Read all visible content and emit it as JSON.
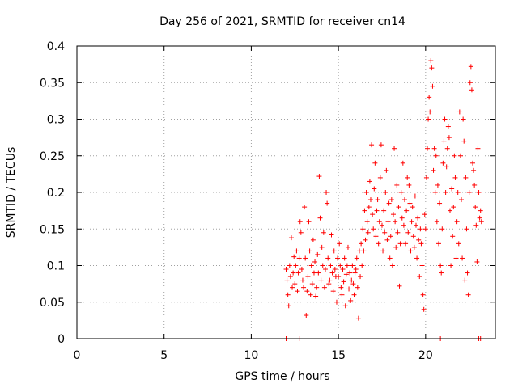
{
  "chart_data": {
    "type": "scatter",
    "title": "Day 256 of 2021, SRMTID for receiver cn14",
    "xlabel": "GPS time / hours",
    "ylabel": "SRMTID / TECUs",
    "xlim": [
      0,
      24
    ],
    "ylim": [
      0,
      0.4
    ],
    "x_ticks": [
      0,
      5,
      10,
      15,
      20
    ],
    "x_tick_labels": [
      "0",
      "5",
      "10",
      "15",
      "20"
    ],
    "y_ticks": [
      0,
      0.05,
      0.1,
      0.15,
      0.2,
      0.25,
      0.3,
      0.35,
      0.4
    ],
    "y_tick_labels": [
      "0",
      "0.05",
      "0.1",
      "0.15",
      "0.2",
      "0.25",
      "0.3",
      "0.35",
      "0.4"
    ],
    "grid": true,
    "marker": "+",
    "color": "#ff0000",
    "series": [
      {
        "name": "SRMTID",
        "points": [
          [
            12.0,
            0.0
          ],
          [
            12.75,
            0.0
          ],
          [
            20.85,
            0.0
          ],
          [
            23.05,
            0.0
          ],
          [
            23.15,
            0.0
          ],
          [
            12.0,
            0.095
          ],
          [
            12.05,
            0.08
          ],
          [
            12.1,
            0.06
          ],
          [
            12.15,
            0.045
          ],
          [
            12.2,
            0.1
          ],
          [
            12.25,
            0.085
          ],
          [
            12.3,
            0.138
          ],
          [
            12.35,
            0.07
          ],
          [
            12.4,
            0.09
          ],
          [
            12.45,
            0.112
          ],
          [
            12.5,
            0.075
          ],
          [
            12.55,
            0.1
          ],
          [
            12.6,
            0.12
          ],
          [
            12.65,
            0.065
          ],
          [
            12.7,
            0.09
          ],
          [
            12.75,
            0.11
          ],
          [
            12.8,
            0.16
          ],
          [
            12.85,
            0.145
          ],
          [
            12.9,
            0.095
          ],
          [
            12.95,
            0.08
          ],
          [
            13.0,
            0.07
          ],
          [
            13.05,
            0.18
          ],
          [
            13.1,
            0.11
          ],
          [
            13.15,
            0.032
          ],
          [
            13.2,
            0.065
          ],
          [
            13.25,
            0.085
          ],
          [
            13.3,
            0.16
          ],
          [
            13.35,
            0.12
          ],
          [
            13.4,
            0.06
          ],
          [
            13.45,
            0.1
          ],
          [
            13.5,
            0.075
          ],
          [
            13.55,
            0.135
          ],
          [
            13.6,
            0.09
          ],
          [
            13.65,
            0.105
          ],
          [
            13.7,
            0.058
          ],
          [
            13.75,
            0.07
          ],
          [
            13.8,
            0.115
          ],
          [
            13.85,
            0.09
          ],
          [
            13.9,
            0.222
          ],
          [
            13.95,
            0.165
          ],
          [
            14.0,
            0.08
          ],
          [
            14.05,
            0.125
          ],
          [
            14.1,
            0.1
          ],
          [
            14.15,
            0.145
          ],
          [
            14.2,
            0.07
          ],
          [
            14.25,
            0.095
          ],
          [
            14.3,
            0.2
          ],
          [
            14.35,
            0.185
          ],
          [
            14.4,
            0.11
          ],
          [
            14.45,
            0.075
          ],
          [
            14.5,
            0.08
          ],
          [
            14.55,
            0.1
          ],
          [
            14.6,
            0.142
          ],
          [
            14.65,
            0.09
          ],
          [
            14.7,
            0.065
          ],
          [
            14.75,
            0.12
          ],
          [
            14.8,
            0.095
          ],
          [
            14.85,
            0.085
          ],
          [
            14.9,
            0.05
          ],
          [
            14.95,
            0.11
          ],
          [
            15.0,
            0.085
          ],
          [
            15.05,
            0.13
          ],
          [
            15.1,
            0.1
          ],
          [
            15.15,
            0.07
          ],
          [
            15.2,
            0.06
          ],
          [
            15.25,
            0.095
          ],
          [
            15.3,
            0.078
          ],
          [
            15.35,
            0.11
          ],
          [
            15.4,
            0.045
          ],
          [
            15.45,
            0.088
          ],
          [
            15.5,
            0.1
          ],
          [
            15.55,
            0.125
          ],
          [
            15.6,
            0.068
          ],
          [
            15.65,
            0.09
          ],
          [
            15.7,
            0.052
          ],
          [
            15.75,
            0.08
          ],
          [
            15.8,
            0.1
          ],
          [
            15.85,
            0.075
          ],
          [
            15.9,
            0.06
          ],
          [
            15.95,
            0.09
          ],
          [
            16.0,
            0.095
          ],
          [
            16.05,
            0.11
          ],
          [
            16.1,
            0.07
          ],
          [
            16.15,
            0.028
          ],
          [
            16.2,
            0.12
          ],
          [
            16.25,
            0.085
          ],
          [
            16.3,
            0.13
          ],
          [
            16.35,
            0.1
          ],
          [
            16.4,
            0.15
          ],
          [
            16.45,
            0.12
          ],
          [
            16.5,
            0.175
          ],
          [
            16.55,
            0.135
          ],
          [
            16.6,
            0.2
          ],
          [
            16.65,
            0.16
          ],
          [
            16.7,
            0.145
          ],
          [
            16.75,
            0.18
          ],
          [
            16.8,
            0.215
          ],
          [
            16.85,
            0.19
          ],
          [
            16.9,
            0.265
          ],
          [
            16.95,
            0.17
          ],
          [
            17.0,
            0.15
          ],
          [
            17.05,
            0.205
          ],
          [
            17.1,
            0.24
          ],
          [
            17.15,
            0.14
          ],
          [
            17.2,
            0.175
          ],
          [
            17.25,
            0.19
          ],
          [
            17.3,
            0.13
          ],
          [
            17.35,
            0.16
          ],
          [
            17.4,
            0.22
          ],
          [
            17.45,
            0.265
          ],
          [
            17.5,
            0.155
          ],
          [
            17.55,
            0.12
          ],
          [
            17.6,
            0.175
          ],
          [
            17.65,
            0.145
          ],
          [
            17.7,
            0.2
          ],
          [
            17.75,
            0.23
          ],
          [
            17.8,
            0.135
          ],
          [
            17.85,
            0.16
          ],
          [
            17.9,
            0.185
          ],
          [
            17.95,
            0.11
          ],
          [
            18.0,
            0.14
          ],
          [
            18.05,
            0.19
          ],
          [
            18.1,
            0.1
          ],
          [
            18.15,
            0.17
          ],
          [
            18.2,
            0.26
          ],
          [
            18.25,
            0.16
          ],
          [
            18.3,
            0.125
          ],
          [
            18.35,
            0.21
          ],
          [
            18.4,
            0.145
          ],
          [
            18.45,
            0.18
          ],
          [
            18.5,
            0.072
          ],
          [
            18.55,
            0.13
          ],
          [
            18.6,
            0.2
          ],
          [
            18.65,
            0.165
          ],
          [
            18.7,
            0.24
          ],
          [
            18.75,
            0.155
          ],
          [
            18.8,
            0.19
          ],
          [
            18.85,
            0.13
          ],
          [
            18.9,
            0.175
          ],
          [
            18.95,
            0.22
          ],
          [
            19.0,
            0.145
          ],
          [
            19.05,
            0.21
          ],
          [
            19.1,
            0.185
          ],
          [
            19.15,
            0.12
          ],
          [
            19.2,
            0.16
          ],
          [
            19.25,
            0.18
          ],
          [
            19.3,
            0.14
          ],
          [
            19.35,
            0.125
          ],
          [
            19.4,
            0.195
          ],
          [
            19.45,
            0.155
          ],
          [
            19.5,
            0.11
          ],
          [
            19.55,
            0.165
          ],
          [
            19.6,
            0.135
          ],
          [
            19.65,
            0.085
          ],
          [
            19.7,
            0.15
          ],
          [
            19.75,
            0.13
          ],
          [
            19.8,
            0.1
          ],
          [
            19.85,
            0.06
          ],
          [
            19.9,
            0.04
          ],
          [
            19.95,
            0.17
          ],
          [
            20.0,
            0.15
          ],
          [
            20.05,
            0.22
          ],
          [
            20.1,
            0.26
          ],
          [
            20.15,
            0.3
          ],
          [
            20.2,
            0.33
          ],
          [
            20.25,
            0.31
          ],
          [
            20.3,
            0.38
          ],
          [
            20.35,
            0.37
          ],
          [
            20.4,
            0.345
          ],
          [
            20.45,
            0.23
          ],
          [
            20.5,
            0.26
          ],
          [
            20.55,
            0.2
          ],
          [
            20.6,
            0.25
          ],
          [
            20.65,
            0.16
          ],
          [
            20.7,
            0.21
          ],
          [
            20.75,
            0.13
          ],
          [
            20.8,
            0.185
          ],
          [
            20.85,
            0.1
          ],
          [
            20.9,
            0.09
          ],
          [
            20.95,
            0.15
          ],
          [
            21.0,
            0.24
          ],
          [
            21.05,
            0.27
          ],
          [
            21.1,
            0.3
          ],
          [
            21.15,
            0.2
          ],
          [
            21.2,
            0.235
          ],
          [
            21.25,
            0.26
          ],
          [
            21.3,
            0.29
          ],
          [
            21.35,
            0.275
          ],
          [
            21.4,
            0.175
          ],
          [
            21.45,
            0.1
          ],
          [
            21.5,
            0.205
          ],
          [
            21.55,
            0.14
          ],
          [
            21.6,
            0.18
          ],
          [
            21.65,
            0.25
          ],
          [
            21.7,
            0.22
          ],
          [
            21.75,
            0.11
          ],
          [
            21.8,
            0.16
          ],
          [
            21.85,
            0.2
          ],
          [
            21.9,
            0.13
          ],
          [
            21.95,
            0.31
          ],
          [
            22.0,
            0.25
          ],
          [
            22.05,
            0.19
          ],
          [
            22.1,
            0.11
          ],
          [
            22.15,
            0.3
          ],
          [
            22.2,
            0.27
          ],
          [
            22.25,
            0.08
          ],
          [
            22.3,
            0.22
          ],
          [
            22.35,
            0.15
          ],
          [
            22.4,
            0.09
          ],
          [
            22.45,
            0.06
          ],
          [
            22.5,
            0.2
          ],
          [
            22.55,
            0.35
          ],
          [
            22.6,
            0.372
          ],
          [
            22.65,
            0.34
          ],
          [
            22.7,
            0.24
          ],
          [
            22.75,
            0.23
          ],
          [
            22.8,
            0.21
          ],
          [
            22.85,
            0.18
          ],
          [
            22.9,
            0.155
          ],
          [
            22.95,
            0.105
          ],
          [
            23.0,
            0.26
          ],
          [
            23.05,
            0.2
          ],
          [
            23.1,
            0.165
          ],
          [
            23.15,
            0.175
          ],
          [
            23.2,
            0.16
          ]
        ]
      }
    ]
  }
}
